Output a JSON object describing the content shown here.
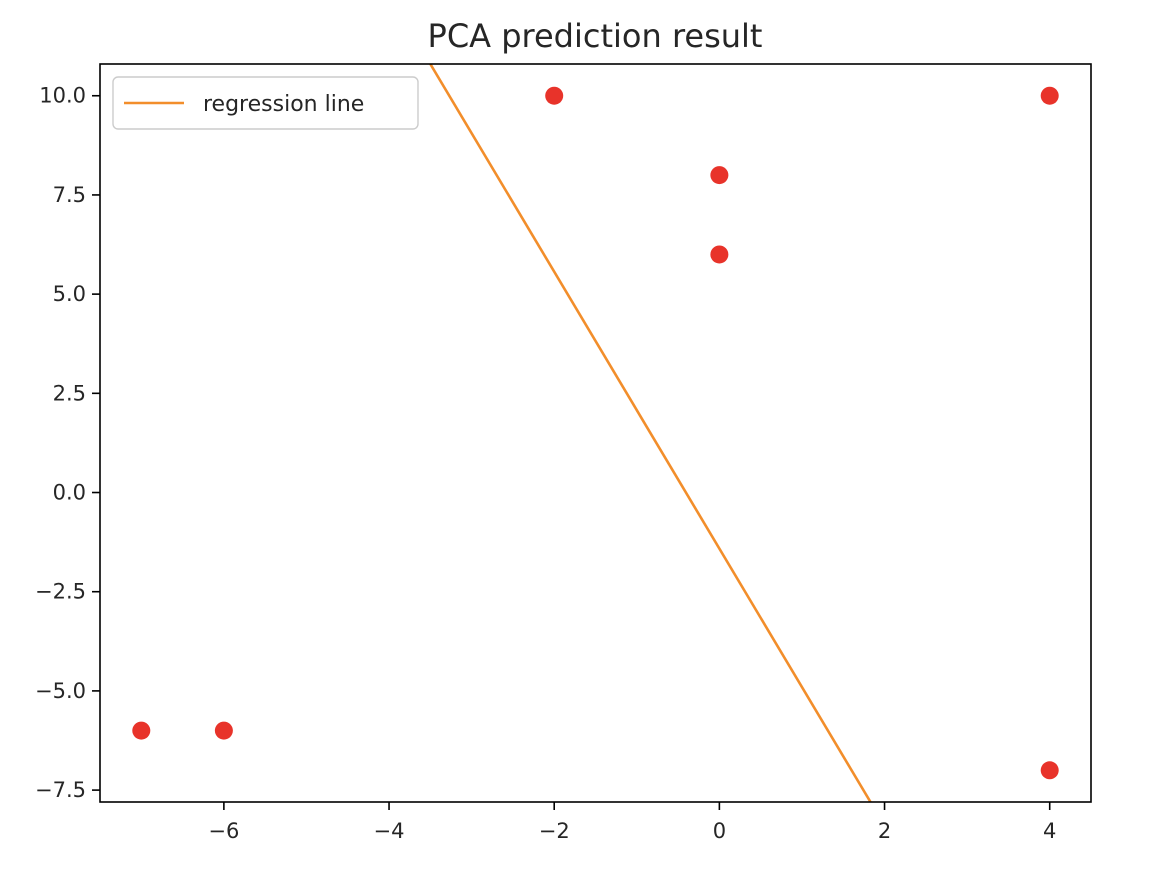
{
  "chart_data": {
    "type": "scatter",
    "title": "PCA prediction result",
    "xlabel": "",
    "ylabel": "",
    "xlim": [
      -7.5,
      4.5
    ],
    "ylim": [
      -7.8,
      10.8
    ],
    "x_ticks": [
      -6,
      -4,
      -2,
      0,
      2,
      4
    ],
    "x_tick_labels": [
      "−6",
      "−4",
      "−2",
      "0",
      "2",
      "4"
    ],
    "y_ticks": [
      -7.5,
      -5.0,
      -2.5,
      0.0,
      2.5,
      5.0,
      7.5,
      10.0
    ],
    "y_tick_labels": [
      "−7.5",
      "−5.0",
      "−2.5",
      "0.0",
      "2.5",
      "5.0",
      "7.5",
      "10.0"
    ],
    "grid": false,
    "legend_placement": "top-left",
    "points": {
      "color": "#e8332a",
      "x": [
        -7,
        -6,
        -2,
        0,
        0,
        4,
        4
      ],
      "y": [
        -6,
        -6,
        10,
        8,
        6,
        10,
        -7
      ]
    },
    "series": [
      {
        "name": "regression line",
        "type": "line",
        "color": "#f28e2b",
        "x": [
          -3.5,
          1.83
        ],
        "y": [
          10.8,
          -7.8
        ]
      }
    ]
  }
}
